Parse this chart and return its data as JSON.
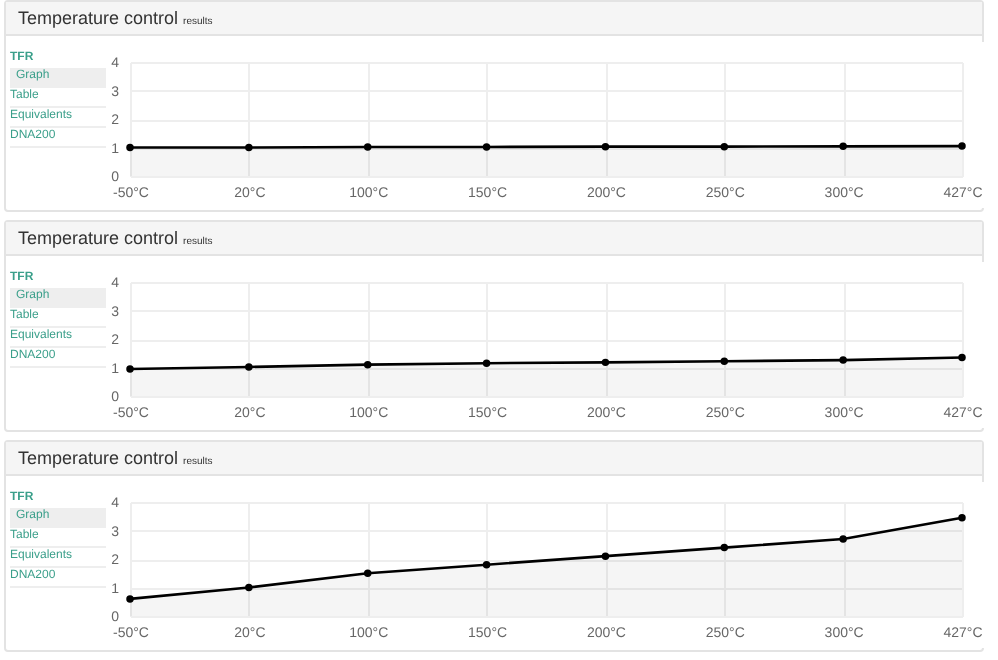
{
  "chart_data": [
    {
      "type": "area",
      "title": "Temperature control",
      "subtitle": "results",
      "annotations": [
        "TFR",
        "Graph",
        "Table",
        "Equivalents",
        "DNA200"
      ],
      "categories": [
        "-50°C",
        "20°C",
        "100°C",
        "150°C",
        "200°C",
        "250°C",
        "300°C",
        "427°C"
      ],
      "series": [
        {
          "color": "#000000",
          "values": [
            1.0,
            1.0,
            1.02,
            1.02,
            1.03,
            1.03,
            1.04,
            1.05
          ]
        }
      ],
      "ylim": [
        0,
        4
      ],
      "yticks": [
        0,
        1,
        2,
        3,
        4
      ],
      "grid": true,
      "marker": "circle"
    },
    {
      "type": "area",
      "title": "Temperature control",
      "subtitle": "results",
      "annotations": [
        "TFR",
        "Graph",
        "Table",
        "Equivalents",
        "DNA200"
      ],
      "categories": [
        "-50°C",
        "20°C",
        "100°C",
        "150°C",
        "200°C",
        "250°C",
        "300°C",
        "427°C"
      ],
      "series": [
        {
          "color": "#000000",
          "values": [
            0.95,
            1.02,
            1.1,
            1.15,
            1.18,
            1.22,
            1.26,
            1.35
          ]
        }
      ],
      "ylim": [
        0,
        4
      ],
      "yticks": [
        0,
        1,
        2,
        3,
        4
      ],
      "grid": true,
      "marker": "circle"
    },
    {
      "type": "area",
      "title": "Temperature control",
      "subtitle": "results",
      "annotations": [
        "TFR",
        "Graph",
        "Table",
        "Equivalents",
        "DNA200"
      ],
      "categories": [
        "-50°C",
        "20°C",
        "100°C",
        "150°C",
        "200°C",
        "250°C",
        "300°C",
        "427°C"
      ],
      "series": [
        {
          "color": "#000000",
          "values": [
            0.6,
            1.0,
            1.5,
            1.8,
            2.1,
            2.4,
            2.7,
            3.45
          ]
        }
      ],
      "ylim": [
        0,
        4
      ],
      "yticks": [
        0,
        1,
        2,
        3,
        4
      ],
      "grid": true,
      "marker": "circle"
    }
  ]
}
